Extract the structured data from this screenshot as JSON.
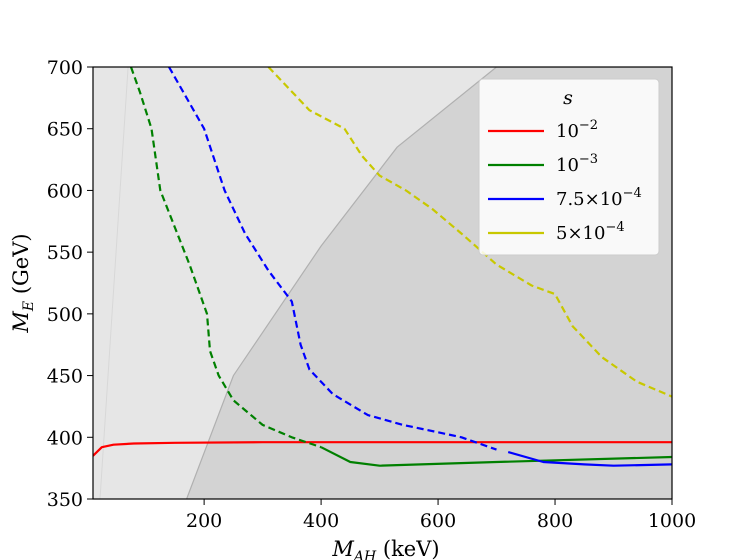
{
  "chart_data": {
    "type": "line",
    "xlabel": "M_AH (keV)",
    "xlabel_main": "M",
    "xlabel_sub": "AH",
    "xlabel_unit": " (keV)",
    "ylabel": "M_E (GeV)",
    "ylabel_main": "M",
    "ylabel_sub": "E",
    "ylabel_unit": " (GeV)",
    "xlim": [
      10,
      1000
    ],
    "ylim": [
      350,
      700
    ],
    "xticks": [
      200,
      400,
      600,
      800,
      1000
    ],
    "yticks": [
      350,
      400,
      450,
      500,
      550,
      600,
      650,
      700
    ],
    "grid": false,
    "legend": {
      "title": "s",
      "placement": "top-right"
    },
    "shaded_regions": [
      {
        "name": "light-excluded",
        "color": "#e6e6e6",
        "points": [
          [
            10,
            350
          ],
          [
            22,
            350
          ],
          [
            70,
            700
          ],
          [
            10,
            700
          ]
        ]
      },
      {
        "name": "light-allowed",
        "color": "#e6e6e6",
        "points": [
          [
            22,
            350
          ],
          [
            70,
            700
          ],
          [
            1000,
            700
          ],
          [
            1000,
            350
          ]
        ]
      },
      {
        "name": "dark-excluded",
        "color": "#d3d3d3",
        "points": [
          [
            170,
            350
          ],
          [
            250,
            450
          ],
          [
            400,
            555
          ],
          [
            530,
            635
          ],
          [
            700,
            700
          ],
          [
            1000,
            700
          ],
          [
            1000,
            350
          ]
        ]
      }
    ],
    "series": [
      {
        "name": "10^-2",
        "label_base": "10",
        "label_exp": "−2",
        "label_mant": "",
        "color": "#ff0000",
        "segments": [
          {
            "style": "solid",
            "points": [
              [
                10,
                385
              ],
              [
                25,
                392
              ],
              [
                45,
                394
              ],
              [
                80,
                395
              ],
              [
                150,
                395.5
              ],
              [
                300,
                396
              ],
              [
                600,
                396
              ],
              [
                1000,
                396
              ]
            ]
          }
        ]
      },
      {
        "name": "10^-3",
        "label_base": "10",
        "label_exp": "−3",
        "label_mant": "",
        "color": "#008000",
        "segments": [
          {
            "style": "dashed",
            "points": [
              [
                75,
                700
              ],
              [
                90,
                680
              ],
              [
                110,
                650
              ],
              [
                125,
                600
              ],
              [
                150,
                570
              ],
              [
                175,
                540
              ],
              [
                190,
                520
              ],
              [
                205,
                500
              ],
              [
                210,
                470
              ],
              [
                225,
                450
              ],
              [
                250,
                430
              ],
              [
                300,
                410
              ],
              [
                350,
                400
              ],
              [
                400,
                392
              ]
            ]
          },
          {
            "style": "solid",
            "points": [
              [
                400,
                392
              ],
              [
                450,
                380
              ],
              [
                500,
                377
              ],
              [
                700,
                380
              ],
              [
                1000,
                384
              ]
            ]
          }
        ]
      },
      {
        "name": "7.5x10^-4",
        "label_base": "10",
        "label_exp": "−4",
        "label_mant": "7.5×",
        "color": "#0000ff",
        "segments": [
          {
            "style": "dashed",
            "points": [
              [
                140,
                700
              ],
              [
                170,
                675
              ],
              [
                200,
                650
              ],
              [
                235,
                600
              ],
              [
                270,
                565
              ],
              [
                310,
                535
              ],
              [
                350,
                510
              ],
              [
                365,
                475
              ],
              [
                380,
                455
              ],
              [
                420,
                435
              ],
              [
                480,
                418
              ],
              [
                540,
                410
              ],
              [
                600,
                404
              ],
              [
                640,
                400
              ],
              [
                700,
                390
              ]
            ]
          },
          {
            "style": "solid",
            "points": [
              [
                720,
                388
              ],
              [
                780,
                380
              ],
              [
                850,
                378
              ],
              [
                900,
                377
              ],
              [
                1000,
                378
              ]
            ]
          }
        ]
      },
      {
        "name": "5x10^-4",
        "label_base": "10",
        "label_exp": "−4",
        "label_mant": "5×",
        "color": "#c8c800",
        "segments": [
          {
            "style": "dashed",
            "points": [
              [
                310,
                700
              ],
              [
                340,
                685
              ],
              [
                380,
                665
              ],
              [
                420,
                655
              ],
              [
                440,
                650
              ],
              [
                470,
                628
              ],
              [
                500,
                612
              ],
              [
                545,
                600
              ],
              [
                590,
                585
              ],
              [
                640,
                565
              ],
              [
                700,
                540
              ],
              [
                760,
                523
              ],
              [
                800,
                516
              ],
              [
                830,
                490
              ],
              [
                880,
                465
              ],
              [
                940,
                445
              ],
              [
                1000,
                433
              ]
            ]
          }
        ]
      }
    ]
  }
}
